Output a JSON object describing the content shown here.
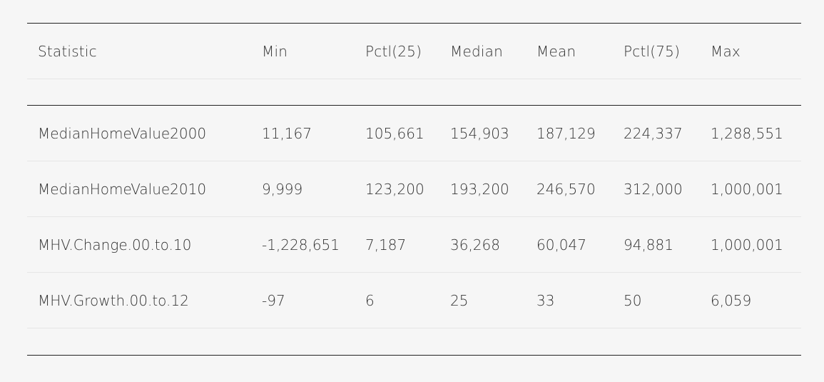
{
  "table": {
    "columns": [
      "Statistic",
      "Min",
      "Pctl(25)",
      "Median",
      "Mean",
      "Pctl(75)",
      "Max"
    ],
    "rows": [
      [
        "MedianHomeValue2000",
        "11,167",
        "105,661",
        "154,903",
        "187,129",
        "224,337",
        "1,288,551"
      ],
      [
        "MedianHomeValue2010",
        "9,999",
        "123,200",
        "193,200",
        "246,570",
        "312,000",
        "1,000,001"
      ],
      [
        "MHV.Change.00.to.10",
        "-1,228,651",
        "7,187",
        "36,268",
        "60,047",
        "94,881",
        "1,000,001"
      ],
      [
        "MHV.Growth.00.to.12",
        "-97",
        "6",
        "25",
        "33",
        "50",
        "6,059"
      ]
    ]
  }
}
